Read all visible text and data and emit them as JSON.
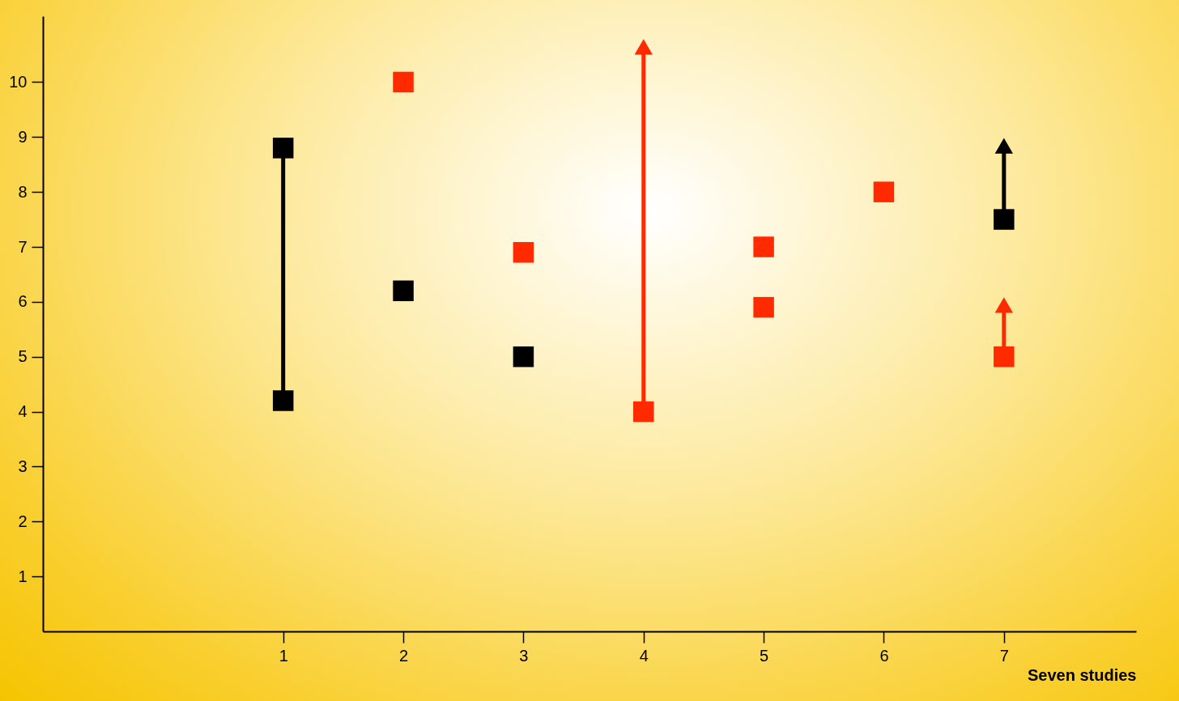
{
  "chart_data": {
    "type": "scatter",
    "xlabel": "Seven studies",
    "marker": "square",
    "grid": false,
    "xlim": [
      -1,
      8.1
    ],
    "ylim": [
      0,
      11.2
    ],
    "xticks": [
      1,
      2,
      3,
      4,
      5,
      6,
      7
    ],
    "yticks": [
      1,
      2,
      3,
      4,
      5,
      6,
      7,
      8,
      9,
      10
    ],
    "series": [
      {
        "color": "#000000",
        "x": [
          1,
          1,
          2,
          3,
          7
        ],
        "values": [
          8.8,
          4.2,
          6.2,
          5.0,
          7.5
        ],
        "errors": [
          null,
          null,
          null,
          null,
          [
            7.5,
            8.9
          ]
        ]
      },
      {
        "type": "line",
        "marker": "none",
        "color": "#000000",
        "x": [
          1,
          1
        ],
        "values": [
          4.2,
          8.8
        ]
      },
      {
        "color": "#ff2a00",
        "x": [
          2,
          3,
          4,
          5,
          5,
          6,
          7
        ],
        "values": [
          10.0,
          6.9,
          4.0,
          7.0,
          5.9,
          8.0,
          5.0
        ],
        "errors": [
          null,
          null,
          [
            4.0,
            10.7
          ],
          null,
          null,
          null,
          [
            5.0,
            6.0
          ]
        ]
      }
    ]
  }
}
